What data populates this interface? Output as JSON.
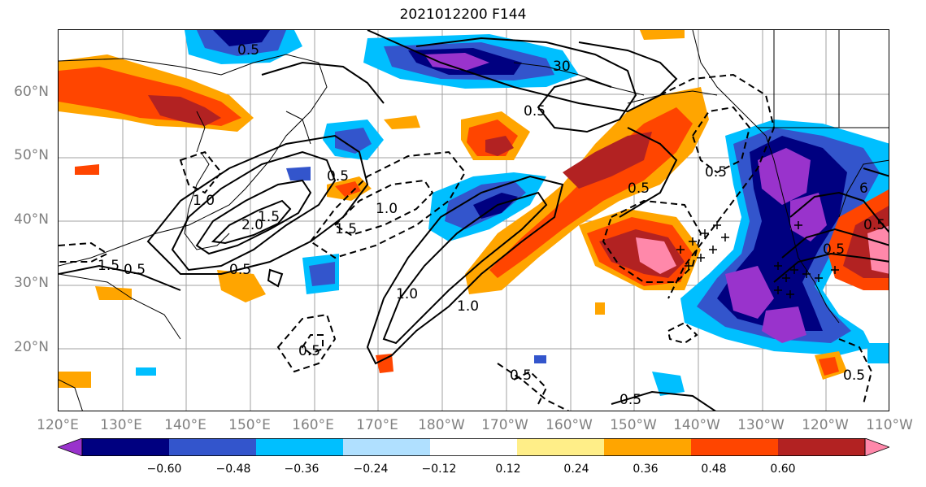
{
  "title": "2021012200 F144",
  "lat_labels": [
    "60°N",
    "50°N",
    "40°N",
    "30°N",
    "20°N"
  ],
  "lon_labels": [
    "120°E",
    "130°E",
    "140°E",
    "150°E",
    "160°E",
    "170°E",
    "180°W",
    "170°W",
    "160°W",
    "150°W",
    "140°W",
    "130°W",
    "120°W",
    "110°W"
  ],
  "colorbar": {
    "ticks": [
      "−0.60",
      "−0.48",
      "−0.36",
      "−0.24",
      "−0.12",
      "0.12",
      "0.24",
      "0.36",
      "0.48",
      "0.60"
    ],
    "colors": [
      "#9933cc",
      "#000080",
      "#3355cc",
      "#00bfff",
      "#b0e0ff",
      "#ffffff",
      "#ffee88",
      "#ffa500",
      "#ff4500",
      "#b22222",
      "#ff88aa"
    ]
  },
  "contour_labels": [
    "0.5",
    "30",
    "0.5",
    "0.5",
    "1.0",
    "1.0",
    "1.5",
    "2.0",
    "1.5",
    "0.5",
    "1.0",
    "1.5",
    "0.5",
    "1.0",
    "0.5",
    "0.5",
    "0.5",
    "0.5",
    "0.5",
    "0.5",
    "0.5",
    "6",
    "0.5"
  ]
}
